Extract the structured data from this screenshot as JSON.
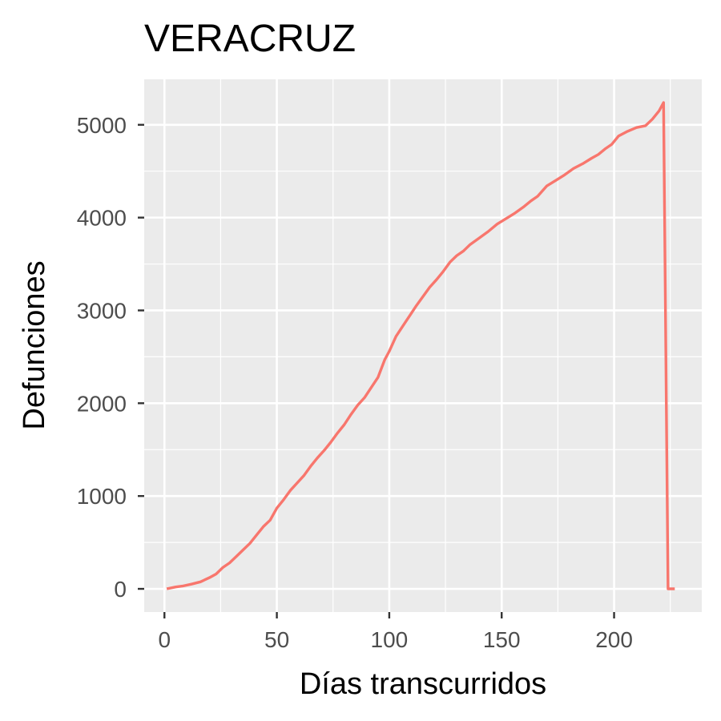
{
  "chart_data": {
    "type": "line",
    "title": "VERACRUZ",
    "xlabel": "Días transcurridos",
    "ylabel": "Defunciones",
    "xlim": [
      -9,
      239
    ],
    "ylim": [
      -250,
      5490
    ],
    "x_ticks": [
      0,
      50,
      100,
      150,
      200
    ],
    "y_ticks": [
      0,
      1000,
      2000,
      3000,
      4000,
      5000
    ],
    "x_tick_labels": [
      "0",
      "50",
      "100",
      "150",
      "200"
    ],
    "y_tick_labels": [
      "0",
      "1000",
      "2000",
      "3000",
      "4000",
      "5000"
    ],
    "grid": true,
    "legend": "none",
    "colors": {
      "panel_background": "#ebebeb",
      "grid": "#ffffff",
      "line": "#f8766d",
      "tick_text": "#4d4d4d"
    },
    "series": [
      {
        "x": [
          1,
          5,
          8,
          12,
          16,
          20,
          23,
          26,
          29,
          32,
          35,
          38,
          41,
          44,
          47,
          50,
          53,
          56,
          59,
          62,
          65,
          68,
          71,
          74,
          77,
          80,
          83,
          86,
          89,
          92,
          95,
          98,
          100,
          103,
          106,
          109,
          112,
          115,
          118,
          121,
          124,
          127,
          130,
          133,
          136,
          140,
          144,
          148,
          152,
          156,
          160,
          163,
          166,
          170,
          174,
          178,
          182,
          186,
          190,
          193,
          196,
          199,
          202,
          206,
          210,
          214,
          217,
          220,
          222,
          223,
          224,
          226,
          227
        ],
        "y": [
          0,
          20,
          30,
          50,
          75,
          120,
          160,
          230,
          280,
          350,
          420,
          490,
          580,
          670,
          740,
          870,
          960,
          1060,
          1140,
          1220,
          1320,
          1410,
          1490,
          1580,
          1680,
          1770,
          1880,
          1980,
          2060,
          2170,
          2280,
          2470,
          2560,
          2720,
          2830,
          2940,
          3050,
          3150,
          3250,
          3330,
          3420,
          3520,
          3590,
          3640,
          3710,
          3780,
          3850,
          3930,
          3990,
          4050,
          4120,
          4180,
          4230,
          4340,
          4400,
          4460,
          4530,
          4580,
          4640,
          4680,
          4740,
          4790,
          4880,
          4930,
          4970,
          4990,
          5060,
          5150,
          5240,
          2600,
          0,
          0,
          0
        ]
      }
    ]
  }
}
